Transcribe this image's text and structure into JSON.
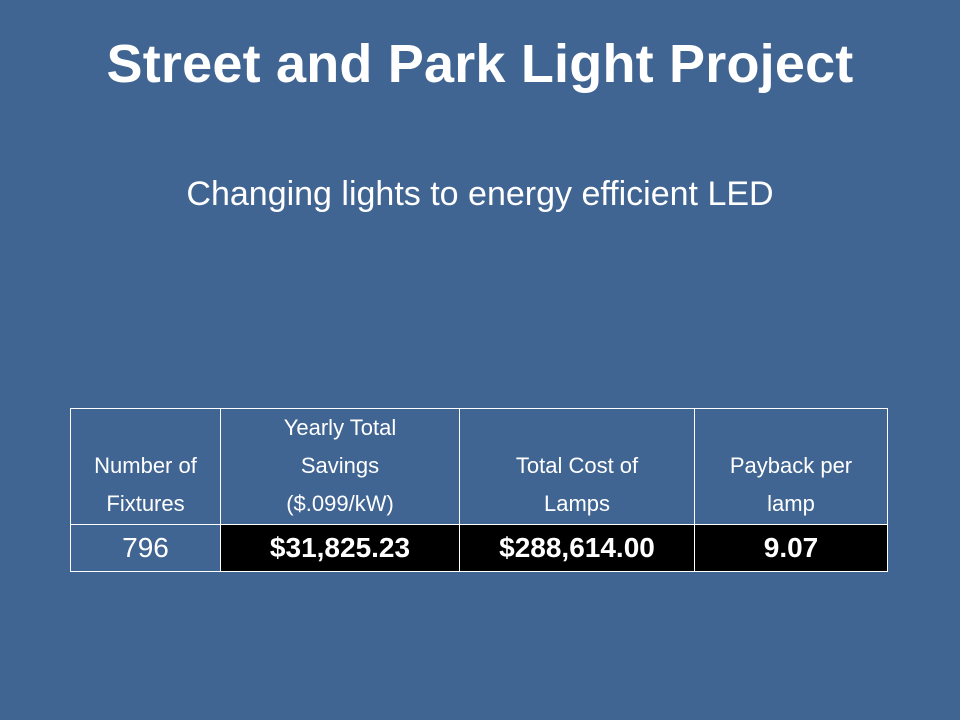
{
  "slide": {
    "title": "Street and Park Light Project",
    "subtitle": "Changing lights to energy efficient LED"
  },
  "table": {
    "headers": [
      [
        "Number of",
        "Fixtures"
      ],
      [
        "Yearly Total",
        "Savings",
        "($.099/kW)"
      ],
      [
        "Total Cost of",
        "Lamps"
      ],
      [
        "Payback per",
        "lamp"
      ]
    ],
    "row": [
      "796",
      "$31,825.23",
      "$288,614.00",
      "9.07"
    ]
  },
  "colors": {
    "background": "#416592",
    "text": "#ffffff",
    "highlight_cell": "#000000"
  }
}
